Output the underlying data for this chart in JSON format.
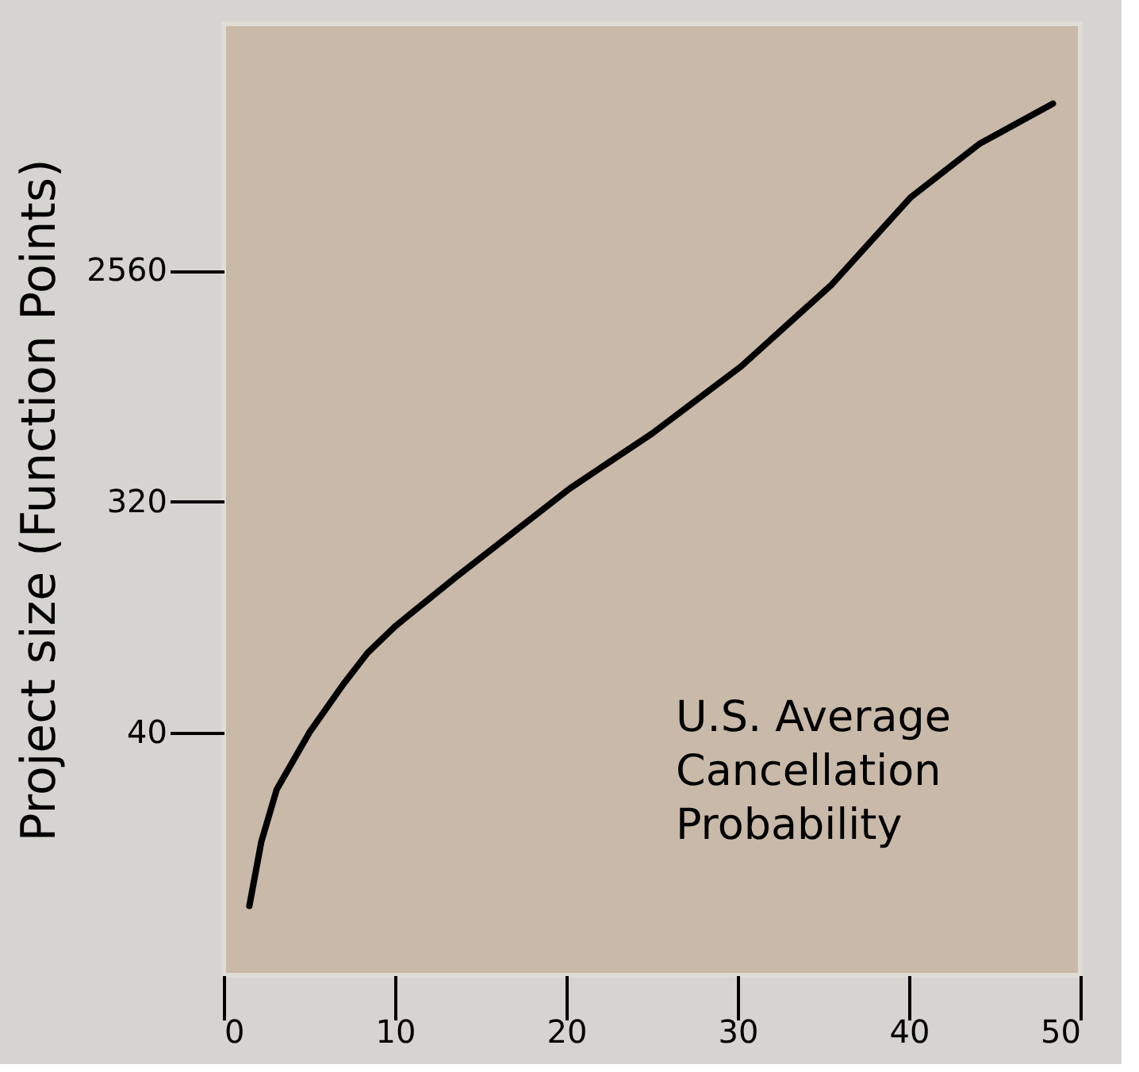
{
  "chart_data": {
    "type": "line",
    "ylabel": "Project size (Function Points)",
    "x": [
      1.5,
      2.2,
      3.1,
      5.0,
      7.0,
      8.4,
      10,
      13.6,
      20.2,
      25,
      30.2,
      35.5,
      40.1,
      44.1,
      48.4
    ],
    "series": [
      {
        "color": "#000000",
        "values": [
          8.4,
          15,
          24,
          40,
          62,
          82,
          104,
          163,
          360,
          590,
          1080,
          2260,
          4950,
          8000,
          11500
        ]
      }
    ],
    "log": "y",
    "xlim": [
      0,
      50
    ],
    "xticks": [
      0,
      10,
      20,
      30,
      40,
      50
    ],
    "ylim": [
      4.5,
      23600
    ],
    "yticks": [
      40,
      320,
      2560
    ],
    "grid": false,
    "marker": "none",
    "line_style": "solid",
    "annotations": [
      "U.S. Average\nCancellation\nProbability"
    ]
  }
}
